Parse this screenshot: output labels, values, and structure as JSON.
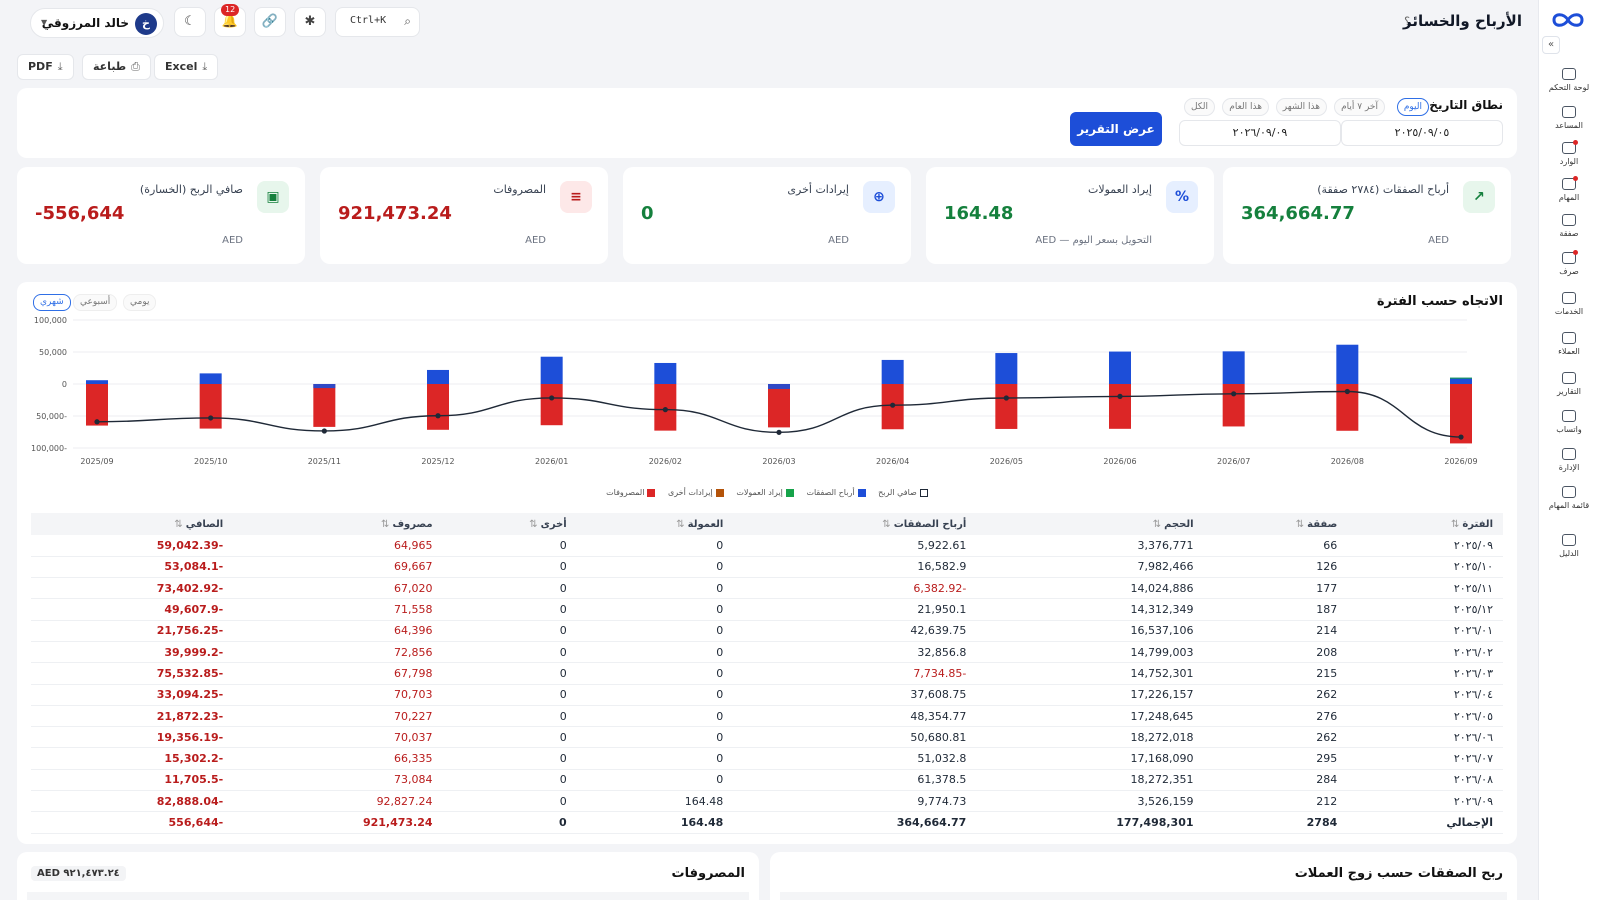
{
  "header": {
    "title": "الأرباح والخسائر",
    "help": "؟",
    "user": {
      "initial": "خ",
      "name": "خالد المرزوقي"
    },
    "notifications": "12",
    "search_shortcut": "Ctrl+K"
  },
  "export": {
    "pdf": "PDF",
    "print": "طباعة",
    "excel": "Excel"
  },
  "filter": {
    "label": "نطاق التاريخ",
    "chips": [
      "اليوم",
      "آخر ٧ أيام",
      "هذا الشهر",
      "هذا العام",
      "الكل"
    ],
    "from": "٢٠٢٥/٠٩/٠٥",
    "to": "٢٠٢٦/٠٩/٠٩",
    "show_button": "عرض التقرير"
  },
  "kpis": [
    {
      "label": "أرباح الصفقات (٢٧٨٤ صفقة)",
      "value": "364,664.77",
      "cur": "AED",
      "icon": "↗"
    },
    {
      "label": "إيراد العمولات",
      "value": "164.48",
      "cur": "AED — التحويل بسعر اليوم",
      "icon": "%"
    },
    {
      "label": "إيرادات أخرى",
      "value": "0",
      "cur": "AED",
      "icon": "⊕"
    },
    {
      "label": "المصروفات",
      "value": "921,473.24",
      "cur": "AED",
      "icon": "≡"
    },
    {
      "label": "صافي الربح (الخسارة)",
      "value": "-556,644",
      "cur": "AED",
      "icon": "▣"
    }
  ],
  "sidebar": [
    {
      "label": "لوحة التحكم"
    },
    {
      "label": "المساعد"
    },
    {
      "label": "الوارد"
    },
    {
      "label": "المهام"
    },
    {
      "label": "صفقة"
    },
    {
      "label": "صرف"
    },
    {
      "label": "الخدمات"
    },
    {
      "label": "العملاء"
    },
    {
      "label": "التقارير"
    },
    {
      "label": "واتساب"
    },
    {
      "label": "الإدارة"
    },
    {
      "label": "قائمة المهام"
    },
    {
      "label": "الدليل"
    }
  ],
  "chart": {
    "title": "الاتجاه حسب الفترة",
    "granularity": [
      "يومي",
      "أسبوعي",
      "شهري"
    ],
    "legend": [
      "صافي الربح",
      "أرباح الصفقات",
      "إيراد العمولات",
      "إيرادات أخرى",
      "المصروفات"
    ]
  },
  "chart_data": {
    "type": "bar",
    "categories": [
      "2025/09",
      "2025/10",
      "2025/11",
      "2025/12",
      "2026/01",
      "2026/02",
      "2026/03",
      "2026/04",
      "2026/05",
      "2026/06",
      "2026/07",
      "2026/08",
      "2026/09"
    ],
    "y_ticks": [
      "100,000",
      "50,000",
      "0",
      "50,000-",
      "100,000-"
    ],
    "ylim": [
      -100000,
      100000
    ],
    "series": [
      {
        "name": "أرباح الصفقات",
        "color": "#1d4ed8",
        "values": [
          5922.61,
          16582.9,
          -6382.92,
          21950.1,
          42639.75,
          32856.8,
          -7734.85,
          37608.75,
          48354.77,
          50680.81,
          51032.8,
          61378.5,
          9774.73
        ]
      },
      {
        "name": "إيراد العمولات",
        "color": "#16a34a",
        "values": [
          0,
          0,
          0,
          0,
          0,
          0,
          0,
          0,
          0,
          0,
          0,
          0,
          164.48
        ]
      },
      {
        "name": "إيرادات أخرى",
        "color": "#b45309",
        "values": [
          0,
          0,
          0,
          0,
          0,
          0,
          0,
          0,
          0,
          0,
          0,
          0,
          0
        ]
      },
      {
        "name": "المصروفات",
        "color": "#dc2626",
        "values": [
          -64965,
          -69667,
          -67020,
          -71558,
          -64396,
          -72856,
          -67798,
          -70703,
          -70227,
          -70037,
          -66335,
          -73084,
          -92827.24
        ]
      },
      {
        "name": "صافي الربح",
        "color": "#1f2937",
        "values": [
          -59042.39,
          -53084.1,
          -73402.92,
          -49607.9,
          -21756.25,
          -39999.2,
          -75532.85,
          -33094.25,
          -21872.23,
          -19356.19,
          -15302.2,
          -11705.5,
          -82888.04
        ]
      }
    ]
  },
  "table": {
    "headers": [
      "الفترة",
      "صفقة",
      "الحجم",
      "أرباح الصفقات",
      "العمولة",
      "أخرى",
      "مصروف",
      "الصافي"
    ],
    "sort_glyph": "⇅",
    "rows": [
      [
        "٢٠٢٥/٠٩",
        "66",
        "3,376,771",
        "5,922.61",
        "0",
        "0",
        "64,965",
        "-59,042.39"
      ],
      [
        "٢٠٢٥/١٠",
        "126",
        "7,982,466",
        "16,582.9",
        "0",
        "0",
        "69,667",
        "-53,084.1"
      ],
      [
        "٢٠٢٥/١١",
        "177",
        "14,024,886",
        "-6,382.92",
        "0",
        "0",
        "67,020",
        "-73,402.92"
      ],
      [
        "٢٠٢٥/١٢",
        "187",
        "14,312,349",
        "21,950.1",
        "0",
        "0",
        "71,558",
        "-49,607.9"
      ],
      [
        "٢٠٢٦/٠١",
        "214",
        "16,537,106",
        "42,639.75",
        "0",
        "0",
        "64,396",
        "-21,756.25"
      ],
      [
        "٢٠٢٦/٠٢",
        "208",
        "14,799,003",
        "32,856.8",
        "0",
        "0",
        "72,856",
        "-39,999.2"
      ],
      [
        "٢٠٢٦/٠٣",
        "215",
        "14,752,301",
        "-7,734.85",
        "0",
        "0",
        "67,798",
        "-75,532.85"
      ],
      [
        "٢٠٢٦/٠٤",
        "262",
        "17,226,157",
        "37,608.75",
        "0",
        "0",
        "70,703",
        "-33,094.25"
      ],
      [
        "٢٠٢٦/٠٥",
        "276",
        "17,248,645",
        "48,354.77",
        "0",
        "0",
        "70,227",
        "-21,872.23"
      ],
      [
        "٢٠٢٦/٠٦",
        "262",
        "18,272,018",
        "50,680.81",
        "0",
        "0",
        "70,037",
        "-19,356.19"
      ],
      [
        "٢٠٢٦/٠٧",
        "295",
        "17,168,090",
        "51,032.8",
        "0",
        "0",
        "66,335",
        "-15,302.2"
      ],
      [
        "٢٠٢٦/٠٨",
        "284",
        "18,272,351",
        "61,378.5",
        "0",
        "0",
        "73,084",
        "-11,705.5"
      ],
      [
        "٢٠٢٦/٠٩",
        "212",
        "3,526,159",
        "9,774.73",
        "164.48",
        "0",
        "92,827.24",
        "-82,888.04"
      ]
    ],
    "total": [
      "الإجمالي",
      "2784",
      "177,498,301",
      "364,664.77",
      "164.48",
      "0",
      "921,473.24",
      "-556,644"
    ]
  },
  "bottom": {
    "expenses_title": "المصروفات",
    "expenses_badge": "AED ٩٢١,٤٧٣.٢٤",
    "pairs_title": "ربح الصفقات حسب زوج العملات"
  }
}
